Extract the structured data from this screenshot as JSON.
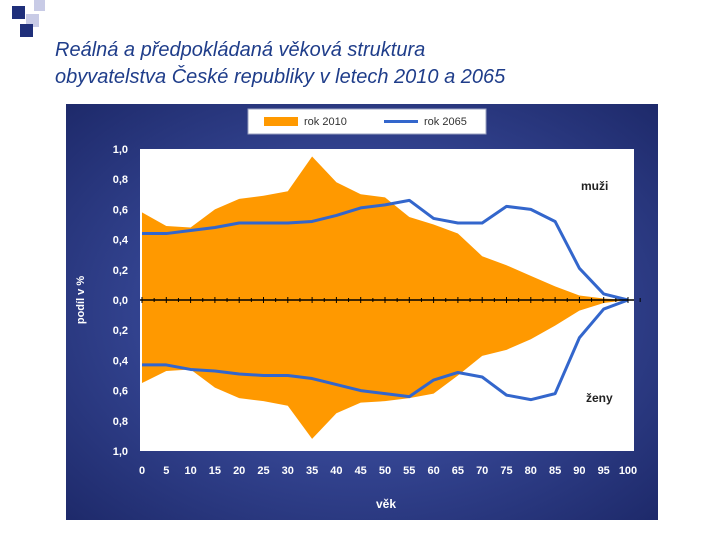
{
  "slide": {
    "title_line1": "Reálná a předpokládaná věková struktura",
    "title_line2": "obyvatelstva České republiky v letech 2010 a 2065"
  },
  "colors": {
    "title": "#1f3d8a",
    "panel_background": "#2f3f8f",
    "plot_background": "#ffffff",
    "area_2010": "#ff9900",
    "line_2065": "#3366cc",
    "axis_text": "#ffffff",
    "decor_squares": [
      "#1f2f7a",
      "#c8cbe6"
    ]
  },
  "chart_data": {
    "type": "area",
    "chart_kind": "population pyramid (rotated)",
    "xlabel": "věk",
    "ylabel": "podíl v %",
    "x_ticks": [
      0,
      5,
      10,
      15,
      20,
      25,
      30,
      35,
      40,
      45,
      50,
      55,
      60,
      65,
      70,
      75,
      80,
      85,
      90,
      95,
      100
    ],
    "y_tick_labels": [
      "1,0",
      "0,8",
      "0,6",
      "0,4",
      "0,2",
      "0,0",
      "0,2",
      "0,4",
      "0,6",
      "0,8",
      "1,0"
    ],
    "xlim": [
      0,
      100
    ],
    "ylim": [
      -1.0,
      1.0
    ],
    "legend_position": "top-center",
    "grid": false,
    "annotations": {
      "upper": "muži",
      "lower": "ženy"
    },
    "x": [
      0,
      5,
      10,
      15,
      20,
      25,
      30,
      35,
      40,
      45,
      50,
      55,
      60,
      65,
      70,
      75,
      80,
      85,
      90,
      95,
      100
    ],
    "series": [
      {
        "name": "rok 2010",
        "kind": "area",
        "men": [
          0.58,
          0.49,
          0.48,
          0.6,
          0.67,
          0.69,
          0.72,
          0.95,
          0.78,
          0.7,
          0.68,
          0.55,
          0.5,
          0.44,
          0.29,
          0.23,
          0.16,
          0.09,
          0.03,
          0.01,
          0.0
        ],
        "women": [
          -0.55,
          -0.47,
          -0.46,
          -0.58,
          -0.65,
          -0.67,
          -0.7,
          -0.92,
          -0.75,
          -0.68,
          -0.67,
          -0.65,
          -0.62,
          -0.5,
          -0.37,
          -0.33,
          -0.26,
          -0.17,
          -0.07,
          -0.02,
          0.0
        ]
      },
      {
        "name": "rok 2065",
        "kind": "line",
        "men": [
          0.44,
          0.44,
          0.46,
          0.48,
          0.51,
          0.51,
          0.51,
          0.52,
          0.56,
          0.61,
          0.63,
          0.66,
          0.54,
          0.51,
          0.51,
          0.62,
          0.6,
          0.52,
          0.21,
          0.04,
          0.0
        ],
        "women": [
          -0.43,
          -0.43,
          -0.46,
          -0.47,
          -0.49,
          -0.5,
          -0.5,
          -0.52,
          -0.56,
          -0.6,
          -0.62,
          -0.64,
          -0.53,
          -0.48,
          -0.51,
          -0.63,
          -0.66,
          -0.62,
          -0.25,
          -0.06,
          0.0
        ]
      }
    ]
  }
}
